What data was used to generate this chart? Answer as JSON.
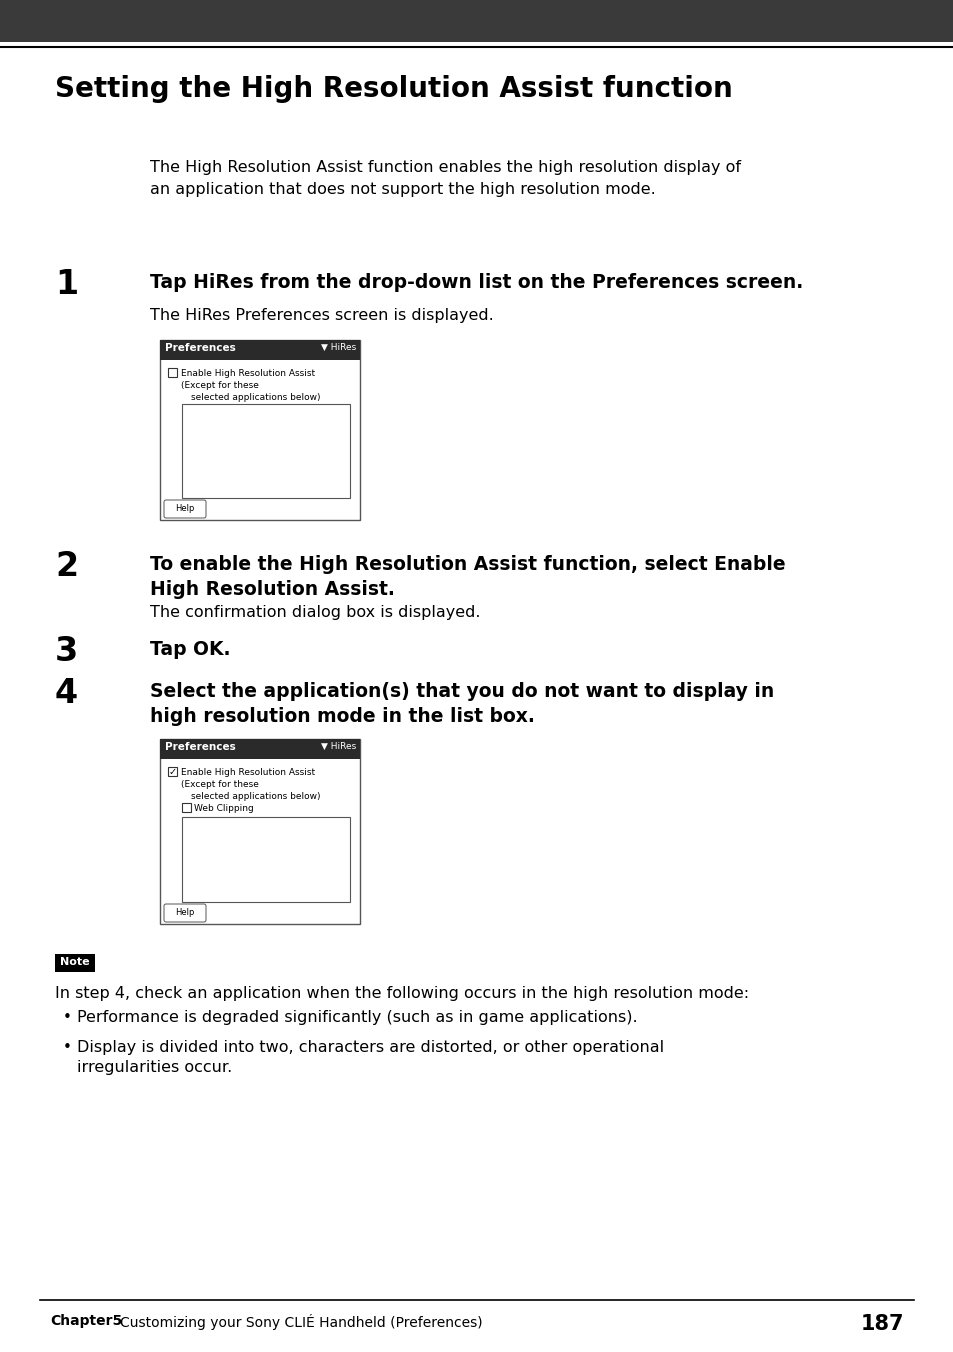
{
  "bg_color": "#ffffff",
  "header_color": "#3a3a3a",
  "title": "Setting the High Resolution Assist function",
  "intro_text": "The High Resolution Assist function enables the high resolution display of\nan application that does not support the high resolution mode.",
  "step1_num": "1",
  "step1_head": "Tap HiRes from the drop-down list on the Preferences screen.",
  "step1_sub": "The HiRes Preferences screen is displayed.",
  "step2_num": "2",
  "step2_head": "To enable the High Resolution Assist function, select Enable\nHigh Resolution Assist.",
  "step2_sub": "The confirmation dialog box is displayed.",
  "step3_num": "3",
  "step3_head": "Tap OK.",
  "step4_num": "4",
  "step4_head": "Select the application(s) that you do not want to display in\nhigh resolution mode in the list box.",
  "note_label": "Note",
  "note_text1": "In step 4, check an application when the following occurs in the high resolution mode:",
  "note_bullet1": "Performance is degraded significantly (such as in game applications).",
  "note_bullet2": "Display is divided into two, characters are distorted, or other operational\nirregularities occur.",
  "footer_chapter": "Chapter5",
  "footer_desc": "Customizing your Sony CLIÉ Handheld (Preferences)",
  "footer_page": "187"
}
